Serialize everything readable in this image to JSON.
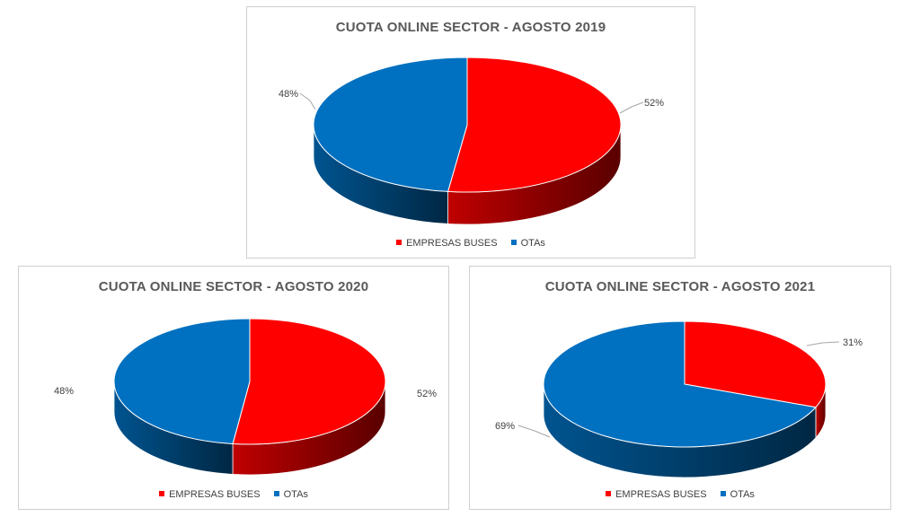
{
  "colors": {
    "empresas": "#FF0000",
    "otas": "#0070C0"
  },
  "chart_data": [
    {
      "type": "pie",
      "title": "CUOTA ONLINE SECTOR - AGOSTO 2019",
      "series": [
        {
          "name": "EMPRESAS BUSES",
          "value": 52,
          "label": "52%"
        },
        {
          "name": "OTAs",
          "value": 48,
          "label": "48%"
        }
      ],
      "legend": "bottom"
    },
    {
      "type": "pie",
      "title": "CUOTA ONLINE SECTOR - AGOSTO 2020",
      "series": [
        {
          "name": "EMPRESAS BUSES",
          "value": 52,
          "label": "52%"
        },
        {
          "name": "OTAs",
          "value": 48,
          "label": "48%"
        }
      ],
      "legend": "bottom"
    },
    {
      "type": "pie",
      "title": "CUOTA ONLINE SECTOR - AGOSTO 2021",
      "series": [
        {
          "name": "EMPRESAS BUSES",
          "value": 31,
          "label": "31%"
        },
        {
          "name": "OTAs",
          "value": 69,
          "label": "69%"
        }
      ],
      "legend": "bottom"
    }
  ]
}
